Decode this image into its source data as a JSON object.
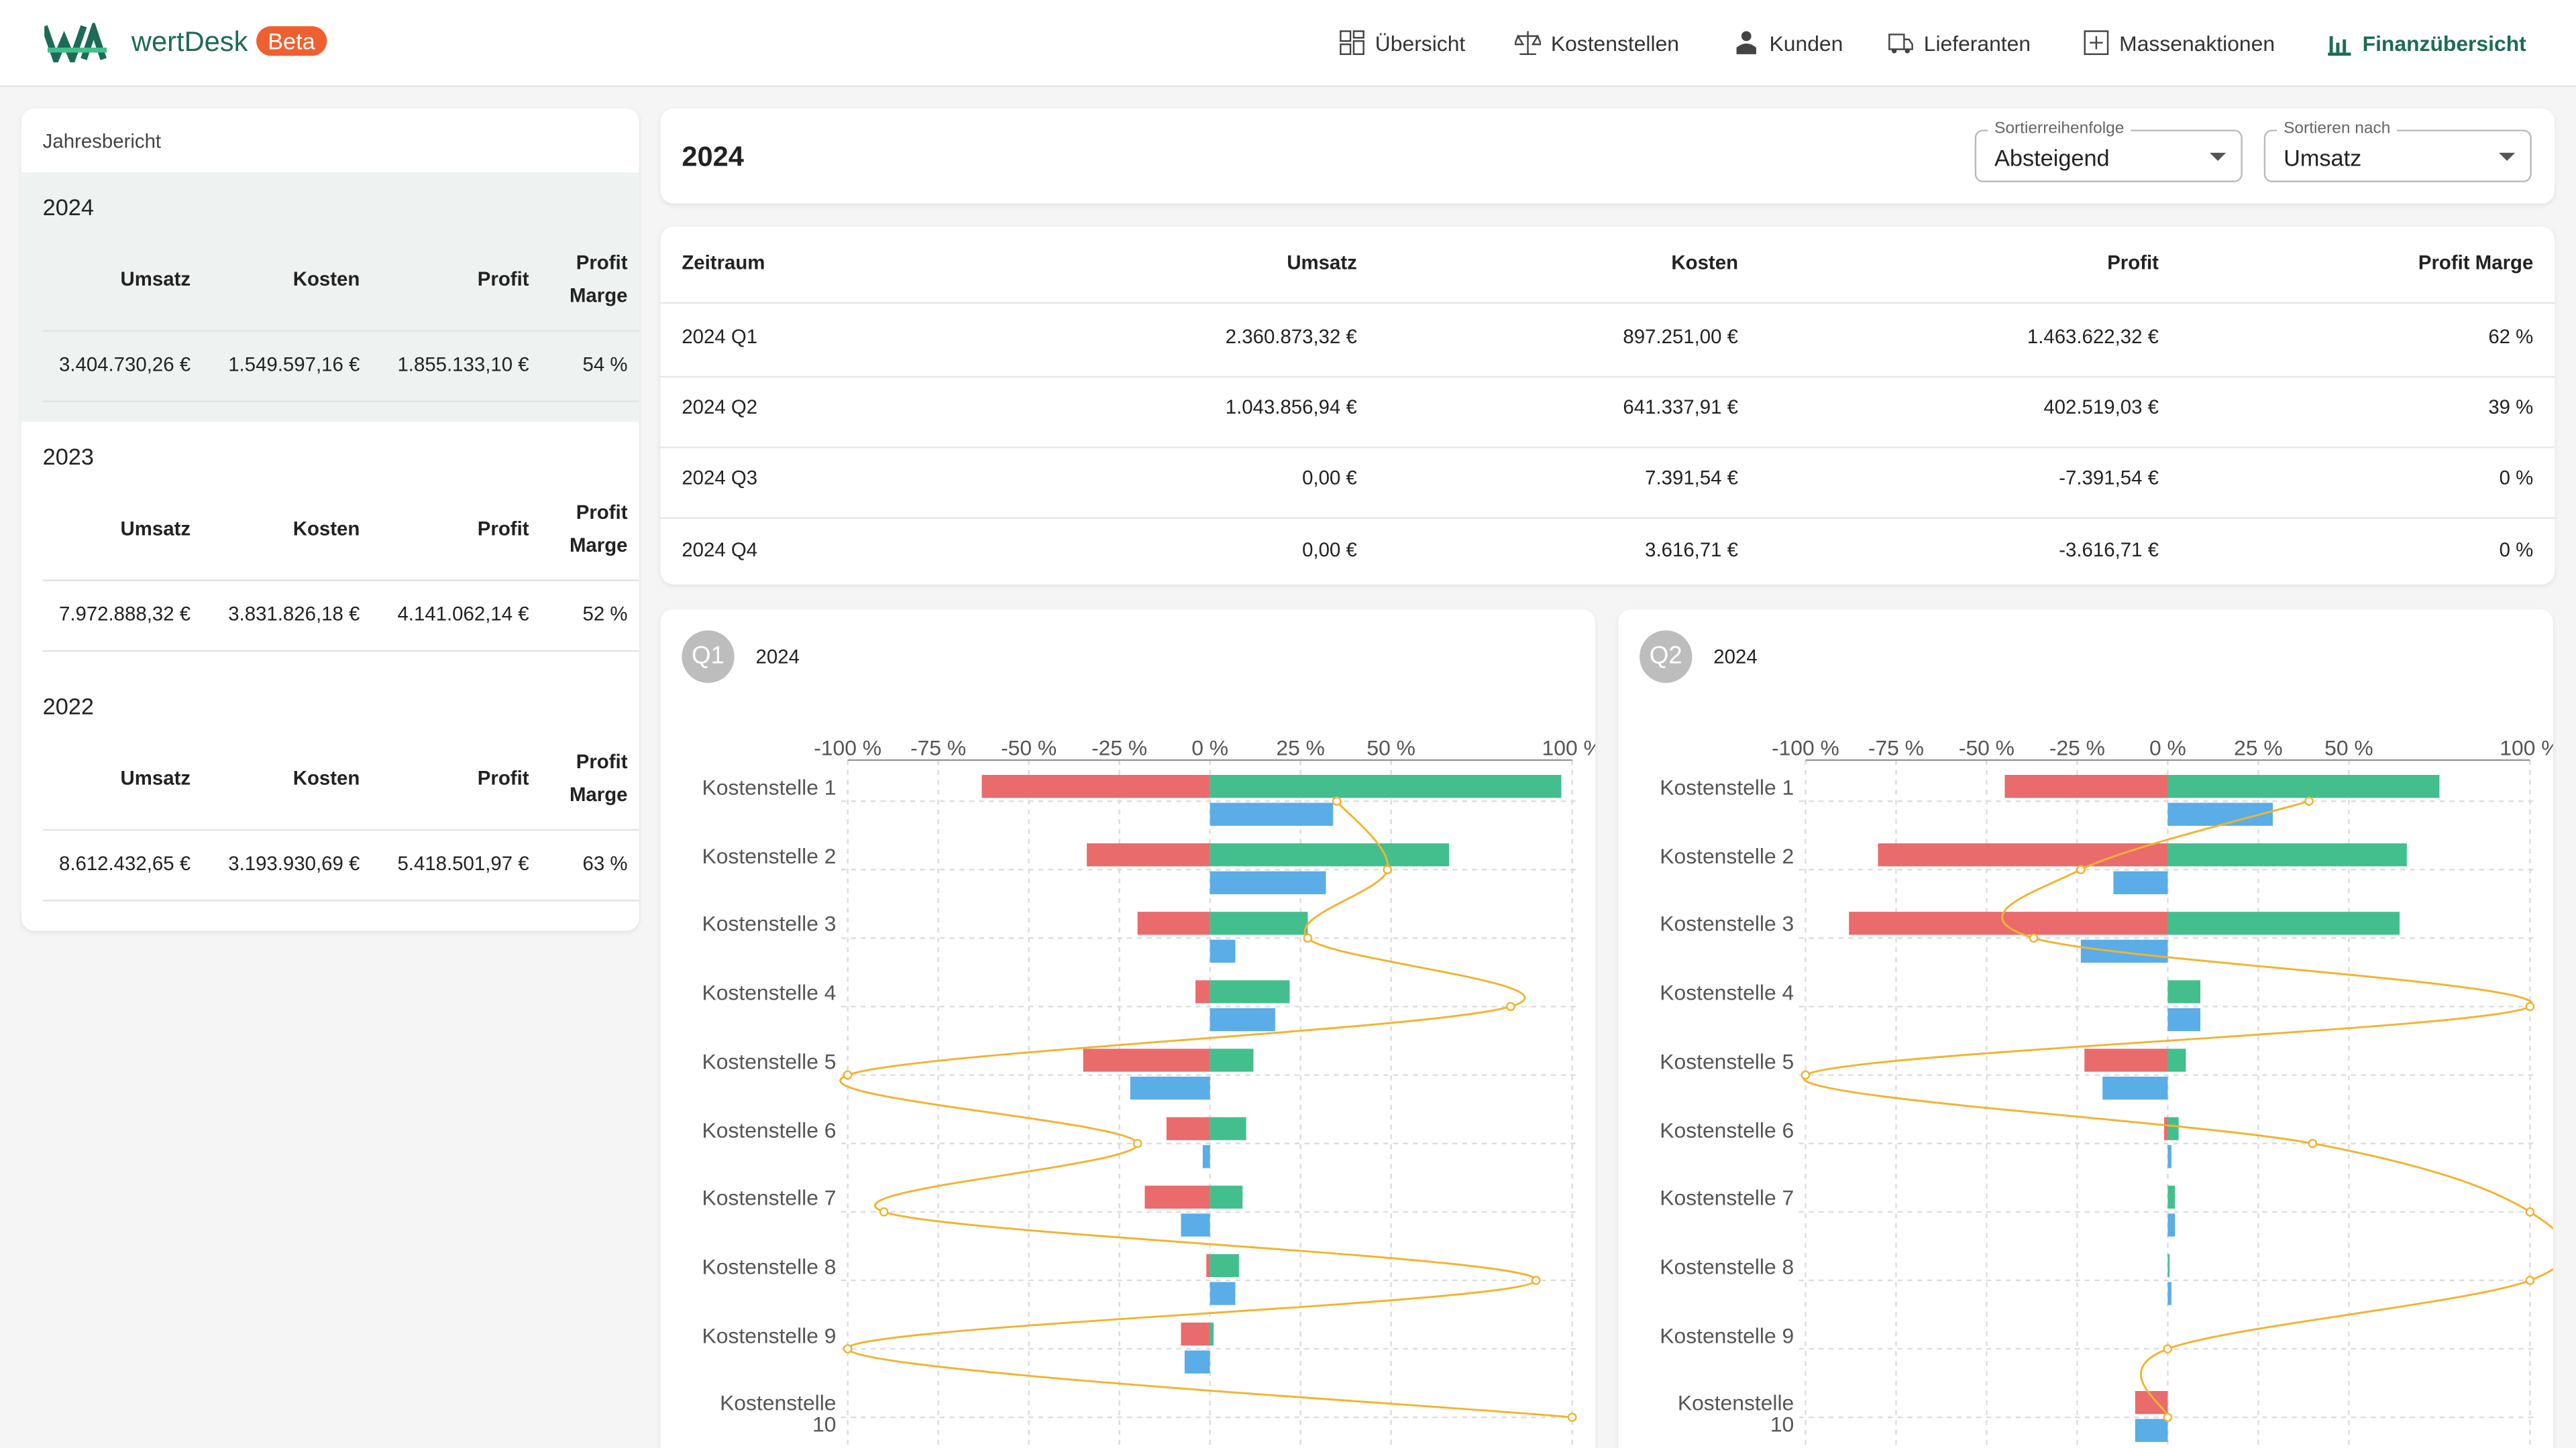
{
  "header": {
    "brand": "wertDesk",
    "badge": "Beta",
    "nav": [
      "Übersicht",
      "Kostenstellen",
      "Kunden",
      "Lieferanten",
      "Massenaktionen",
      "Finanzübersicht"
    ]
  },
  "sidebar": {
    "title": "Jahresbericht",
    "columns": [
      "Umsatz",
      "Kosten",
      "Profit",
      "Profit Marge"
    ],
    "years": [
      {
        "year": "2024",
        "values": [
          "3.404.730,26 €",
          "1.549.597,16 €",
          "1.855.133,10 €",
          "54 %"
        ]
      },
      {
        "year": "2023",
        "values": [
          "7.972.888,32 €",
          "3.831.826,18 €",
          "4.141.062,14 €",
          "52 %"
        ]
      },
      {
        "year": "2022",
        "values": [
          "8.612.432,65 €",
          "3.193.930,69 €",
          "5.418.501,97 €",
          "63 %"
        ]
      }
    ]
  },
  "main": {
    "title": "2024",
    "selects": [
      {
        "label": "Sortierreihenfolge",
        "value": "Absteigend"
      },
      {
        "label": "Sortieren nach",
        "value": "Umsatz"
      }
    ]
  },
  "table": {
    "columns": [
      "Zeitraum",
      "Umsatz",
      "Kosten",
      "Profit",
      "Profit Marge"
    ],
    "rows": [
      [
        "2024 Q1",
        "2.360.873,32 €",
        "897.251,00 €",
        "1.463.622,32 €",
        "62 %"
      ],
      [
        "2024 Q2",
        "1.043.856,94 €",
        "641.337,91 €",
        "402.519,03 €",
        "39 %"
      ],
      [
        "2024 Q3",
        "0,00 €",
        "7.391,54 €",
        "-7.391,54 €",
        "0 %"
      ],
      [
        "2024 Q4",
        "0,00 €",
        "3.616,71 €",
        "-3.616,71 €",
        "0 %"
      ]
    ]
  },
  "chart_data": [
    {
      "type": "bar",
      "orientation": "horizontal",
      "badge": "Q1",
      "title": "2024",
      "grid": true,
      "categories": [
        "Kostenstelle 1",
        "Kostenstelle 2",
        "Kostenstelle 3",
        "Kostenstelle 4",
        "Kostenstelle 5",
        "Kostenstelle 6",
        "Kostenstelle 7",
        "Kostenstelle 8",
        "Kostenstelle 9",
        "Kostenstelle 10"
      ],
      "xlim": [
        -100,
        100
      ],
      "xticks": [
        {
          "value": -100,
          "label": "-100 %"
        },
        {
          "value": -75,
          "label": "-75 %"
        },
        {
          "value": -50,
          "label": "-50 %"
        },
        {
          "value": -25,
          "label": "-25 %"
        },
        {
          "value": 0,
          "label": "0 %"
        },
        {
          "value": 25,
          "label": "25 %"
        },
        {
          "value": 50,
          "label": "50 %"
        },
        {
          "value": 100,
          "label": "100 %"
        }
      ],
      "series": [
        {
          "type": "bar",
          "color": "#e96b6b",
          "values": [
            -63,
            -34,
            -20,
            -4,
            -35,
            -12,
            -18,
            -1,
            -8,
            0
          ]
        },
        {
          "type": "bar",
          "color": "#43bf8e",
          "values": [
            97,
            66,
            27,
            22,
            12,
            10,
            9,
            8,
            1,
            0
          ]
        },
        {
          "type": "bar",
          "color": "#5aade6",
          "values": [
            34,
            32,
            7,
            18,
            -22,
            -2,
            -8,
            7,
            -7,
            0
          ]
        },
        {
          "type": "line",
          "color": "#f0b432",
          "values": [
            35,
            49,
            27,
            83,
            -100,
            -20,
            -90,
            90,
            -100,
            100
          ]
        }
      ]
    },
    {
      "type": "bar",
      "orientation": "horizontal",
      "badge": "Q2",
      "title": "2024",
      "grid": true,
      "categories": [
        "Kostenstelle 1",
        "Kostenstelle 2",
        "Kostenstelle 3",
        "Kostenstelle 4",
        "Kostenstelle 5",
        "Kostenstelle 6",
        "Kostenstelle 7",
        "Kostenstelle 8",
        "Kostenstelle 9",
        "Kostenstelle 10"
      ],
      "xlim": [
        -100,
        100
      ],
      "xticks": [
        {
          "value": -100,
          "label": "-100 %"
        },
        {
          "value": -75,
          "label": "-75 %"
        },
        {
          "value": -50,
          "label": "-50 %"
        },
        {
          "value": -25,
          "label": "-25 %"
        },
        {
          "value": 0,
          "label": "0 %"
        },
        {
          "value": 25,
          "label": "25 %"
        },
        {
          "value": 50,
          "label": "50 %"
        },
        {
          "value": 100,
          "label": "100 %"
        }
      ],
      "series": [
        {
          "type": "bar",
          "color": "#e96b6b",
          "values": [
            -45,
            -80,
            -88,
            0,
            -23,
            -1,
            0,
            0,
            0,
            -9
          ]
        },
        {
          "type": "bar",
          "color": "#43bf8e",
          "values": [
            75,
            66,
            64,
            9,
            5,
            3,
            2,
            0.5,
            0,
            0
          ]
        },
        {
          "type": "bar",
          "color": "#5aade6",
          "values": [
            29,
            -15,
            -24,
            9,
            -18,
            1,
            2,
            1,
            0,
            -9
          ]
        },
        {
          "type": "line",
          "color": "#f0b432",
          "values": [
            39,
            -24,
            -37,
            100,
            -100,
            40,
            100,
            100,
            0,
            0
          ]
        }
      ]
    }
  ]
}
